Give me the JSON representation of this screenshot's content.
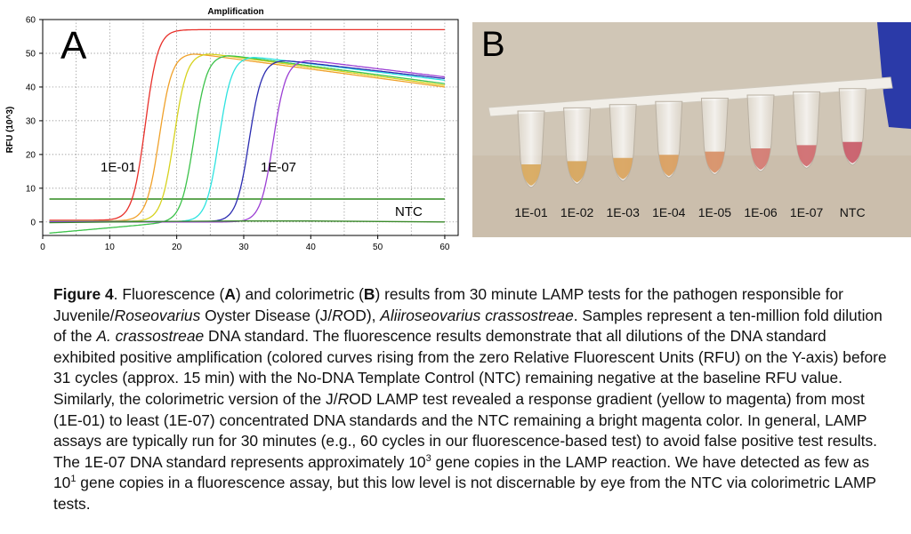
{
  "panel_a": {
    "letter": "A",
    "series_labels": {
      "first": "1E-01",
      "last": "1E-07",
      "ntc": "NTC"
    }
  },
  "panel_b": {
    "letter": "B",
    "tubes": [
      {
        "label": "1E-01",
        "color": "#d8a85c"
      },
      {
        "label": "1E-02",
        "color": "#d6a45a"
      },
      {
        "label": "1E-03",
        "color": "#d9a35c"
      },
      {
        "label": "1E-04",
        "color": "#d99d5d"
      },
      {
        "label": "1E-05",
        "color": "#d78f66"
      },
      {
        "label": "1E-06",
        "color": "#d27870"
      },
      {
        "label": "1E-07",
        "color": "#cf6a6e"
      },
      {
        "label": "NTC",
        "color": "#c85a67"
      }
    ]
  },
  "chart_data": {
    "type": "line",
    "title": "Amplification",
    "xlabel": "",
    "ylabel": "RFU (10^3)",
    "xlim": [
      0,
      62
    ],
    "ylim": [
      -4,
      60
    ],
    "xticks": [
      0,
      10,
      20,
      30,
      40,
      50,
      60
    ],
    "yticks": [
      0,
      10,
      20,
      30,
      40,
      50,
      60
    ],
    "grid": true,
    "threshold": 6.8,
    "series": [
      {
        "name": "1E-01",
        "color": "#e8302a",
        "midpoint": 15.3,
        "plateau": 57,
        "end": 57,
        "baseline": 0.5
      },
      {
        "name": "1E-02",
        "color": "#f0a12a",
        "midpoint": 17.4,
        "plateau": 50,
        "end": 40,
        "baseline": 0.3
      },
      {
        "name": "1E-03",
        "color": "#d6d21e",
        "midpoint": 19.6,
        "plateau": 50,
        "end": 40.5,
        "baseline": 0.2
      },
      {
        "name": "1E-04",
        "color": "#3cc24a",
        "midpoint": 22.6,
        "plateau": 49.5,
        "end": 41,
        "baseline": -3.3
      },
      {
        "name": "1E-05",
        "color": "#2ee3e0",
        "midpoint": 26.3,
        "plateau": 49,
        "end": 42,
        "baseline": 0.1
      },
      {
        "name": "1E-06",
        "color": "#2a2bb0",
        "midpoint": 30.8,
        "plateau": 48,
        "end": 42.5,
        "baseline": 0.1
      },
      {
        "name": "1E-07",
        "color": "#9c3fd4",
        "midpoint": 34.4,
        "plateau": 48,
        "end": 43,
        "baseline": 0.0
      },
      {
        "name": "NTC",
        "color": "#3a8a2a",
        "x": [
          1,
          20,
          30,
          40,
          60
        ],
        "y": [
          -0.2,
          0.2,
          0.3,
          0.3,
          0.0
        ]
      }
    ]
  },
  "caption": {
    "fig_label": "Figure 4",
    "t1": ". Fluorescence (",
    "a": "A",
    "t2": ") and colorimetric (",
    "b": "B",
    "t3": ") results from 30 minute LAMP tests for the pathogen responsible for Juvenile/",
    "i1": "Roseovarius",
    "t4": " Oyster Disease (J/",
    "i2": "R",
    "t5": "OD), ",
    "i3": "Aliiroseovarius crassostreae",
    "t6": ". Samples represent a ten-million fold dilution of the ",
    "i4": "A. crassostreae",
    "t7": " DNA standard. The fluorescence results demonstrate that all dilutions of the DNA standard exhibited positive amplification (colored curves rising from the zero Relative Fluorescent Units (RFU) on the Y-axis) before 31 cycles (approx. 15 min) with the No-DNA Template Control (NTC) remaining negative at the baseline RFU value. Similarly, the colorimetric version of the J/",
    "i5": "R",
    "t8": "OD LAMP test revealed a response gradient (yellow to magenta) from most (1E-01) to least (1E-07) concentrated DNA standards and the NTC remaining a bright magenta color. In general, LAMP assays are typically run for 30 minutes (e.g., 60 cycles in our fluorescence-based test) to avoid false positive test results. The 1E-07 DNA standard represents approximately 10",
    "sup1": "3",
    "t9": " gene copies in the LAMP reaction. We have detected as few as 10",
    "sup2": "1",
    "t10": " gene copies in a fluorescence assay, but this low level is not discernable by eye from the NTC via colorimetric LAMP tests."
  }
}
